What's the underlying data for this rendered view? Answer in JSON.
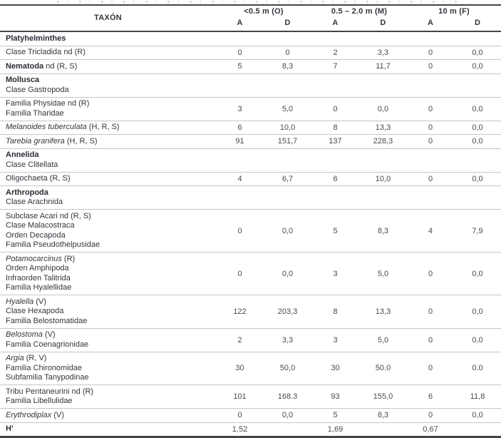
{
  "appearance": {
    "ink_color": "#38333e",
    "number_color": "#4a4953",
    "dark_rule_color": "#454545",
    "light_rule_color": "#c6c6c6"
  },
  "table": {
    "taxon_header": "TAXÓN",
    "column_groups": [
      {
        "label": "<0.5 m (O)",
        "sub": [
          "A",
          "D"
        ]
      },
      {
        "label": "0.5 – 2.0 m (M)",
        "sub": [
          "A",
          "D"
        ]
      },
      {
        "label": "10 m (F)",
        "sub": [
          "A",
          "D"
        ]
      }
    ],
    "rows": [
      {
        "lines": [
          [
            {
              "t": "Platyhelminthes",
              "s": "b"
            }
          ]
        ],
        "values": [
          "",
          "",
          "",
          "",
          "",
          ""
        ]
      },
      {
        "lines": [
          [
            {
              "t": "Clase Tricladida nd (R)",
              "s": "r"
            }
          ]
        ],
        "values": [
          "0",
          "0",
          "2",
          "3,3",
          "0",
          "0,0"
        ]
      },
      {
        "lines": [
          [
            {
              "t": "Nematoda",
              "s": "b"
            },
            {
              "t": " nd (R, S)",
              "s": "r"
            }
          ]
        ],
        "values": [
          "5",
          "8,3",
          "7",
          "11,7",
          "0",
          "0,0"
        ]
      },
      {
        "lines": [
          [
            {
              "t": "Mollusca",
              "s": "b"
            }
          ],
          [
            {
              "t": "Clase Gastropoda",
              "s": "r"
            }
          ]
        ],
        "values": [
          "",
          "",
          "",
          "",
          "",
          ""
        ]
      },
      {
        "lines": [
          [
            {
              "t": "Familia Physidae nd (R)",
              "s": "r"
            }
          ],
          [
            {
              "t": "Familia Tharidae",
              "s": "r"
            }
          ]
        ],
        "values": [
          "3",
          "5,0",
          "0",
          "0,0",
          "0",
          "0,0"
        ]
      },
      {
        "lines": [
          [
            {
              "t": "Melanoides tuberculata",
              "s": "i"
            },
            {
              "t": " (H, R, S)",
              "s": "r"
            }
          ]
        ],
        "values": [
          "6",
          "10,0",
          "8",
          "13,3",
          "0",
          "0,0"
        ]
      },
      {
        "lines": [
          [
            {
              "t": "Tarebia granifera",
              "s": "i"
            },
            {
              "t": " (H, R, S)",
              "s": "r"
            }
          ]
        ],
        "values": [
          "91",
          "151,7",
          "137",
          "228,3",
          "0",
          "0,0"
        ]
      },
      {
        "lines": [
          [
            {
              "t": "Annelida",
              "s": "b"
            }
          ],
          [
            {
              "t": "Clase Clitellata",
              "s": "r"
            }
          ]
        ],
        "values": [
          "",
          "",
          "",
          "",
          "",
          ""
        ]
      },
      {
        "lines": [
          [
            {
              "t": "Oligochaeta (R, S)",
              "s": "r"
            }
          ]
        ],
        "values": [
          "4",
          "6,7",
          "6",
          "10,0",
          "0",
          "0,0"
        ]
      },
      {
        "lines": [
          [
            {
              "t": "Arthropoda",
              "s": "b"
            }
          ],
          [
            {
              "t": "Clase Arachnida",
              "s": "r"
            }
          ]
        ],
        "values": [
          "",
          "",
          "",
          "",
          "",
          ""
        ]
      },
      {
        "lines": [
          [
            {
              "t": "Subclase Acari nd (R, S)",
              "s": "r"
            }
          ],
          [
            {
              "t": "Clase Malacostraca",
              "s": "r"
            }
          ],
          [
            {
              "t": "Orden Decapoda",
              "s": "r"
            }
          ],
          [
            {
              "t": "Familia Pseudothelpusidae",
              "s": "r"
            }
          ]
        ],
        "values": [
          "0",
          "0,0",
          "5",
          "8,3",
          "4",
          "7,9"
        ]
      },
      {
        "lines": [
          [
            {
              "t": "Potamocarcinus",
              "s": "i"
            },
            {
              "t": " (R)",
              "s": "r"
            }
          ],
          [
            {
              "t": "Orden Amphipoda",
              "s": "r"
            }
          ],
          [
            {
              "t": "Infraorden Talitrida",
              "s": "r"
            }
          ],
          [
            {
              "t": "Familia Hyalellidae",
              "s": "r"
            }
          ]
        ],
        "values": [
          "0",
          "0,0",
          "3",
          "5,0",
          "0",
          "0,0"
        ]
      },
      {
        "lines": [
          [
            {
              "t": "Hyalella",
              "s": "i"
            },
            {
              "t": " (V)",
              "s": "r"
            }
          ],
          [
            {
              "t": "Clase Hexapoda",
              "s": "r"
            }
          ],
          [
            {
              "t": "Familia Belostomatidae",
              "s": "r"
            }
          ]
        ],
        "values": [
          "122",
          "203,3",
          "8",
          "13,3",
          "0",
          "0,0"
        ]
      },
      {
        "lines": [
          [
            {
              "t": "Belostoma",
              "s": "i"
            },
            {
              "t": " (V)",
              "s": "r"
            }
          ],
          [
            {
              "t": "Familia Coenagrionidae",
              "s": "r"
            }
          ]
        ],
        "values": [
          "2",
          "3,3",
          "3",
          "5,0",
          "0",
          "0,0"
        ]
      },
      {
        "lines": [
          [
            {
              "t": "Argia",
              "s": "i"
            },
            {
              "t": " (R, V)",
              "s": "r"
            }
          ],
          [
            {
              "t": "Familia Chironomidae",
              "s": "r"
            }
          ],
          [
            {
              "t": "Subfamilia Tanypodinae",
              "s": "r"
            }
          ]
        ],
        "values": [
          "30",
          "50,0",
          "30",
          "50.0",
          "0",
          "0.0"
        ]
      },
      {
        "lines": [
          [
            {
              "t": "Tribu Pentaneurini nd (R)",
              "s": "r"
            }
          ],
          [
            {
              "t": "Familia Libellulidae",
              "s": "r"
            }
          ]
        ],
        "values": [
          "101",
          "168.3",
          "93",
          "155,0",
          "6",
          "11,8"
        ]
      },
      {
        "lines": [
          [
            {
              "t": "Erythrodiplax",
              "s": "i"
            },
            {
              "t": " (V)",
              "s": "r"
            }
          ]
        ],
        "values": [
          "0",
          "0,0",
          "5",
          "8,3",
          "0",
          "0,0"
        ]
      },
      {
        "lines": [
          [
            {
              "t": "H'",
              "s": "b"
            }
          ]
        ],
        "values": [
          "1,52",
          "",
          "1,69",
          "",
          "0,67",
          ""
        ]
      }
    ]
  }
}
